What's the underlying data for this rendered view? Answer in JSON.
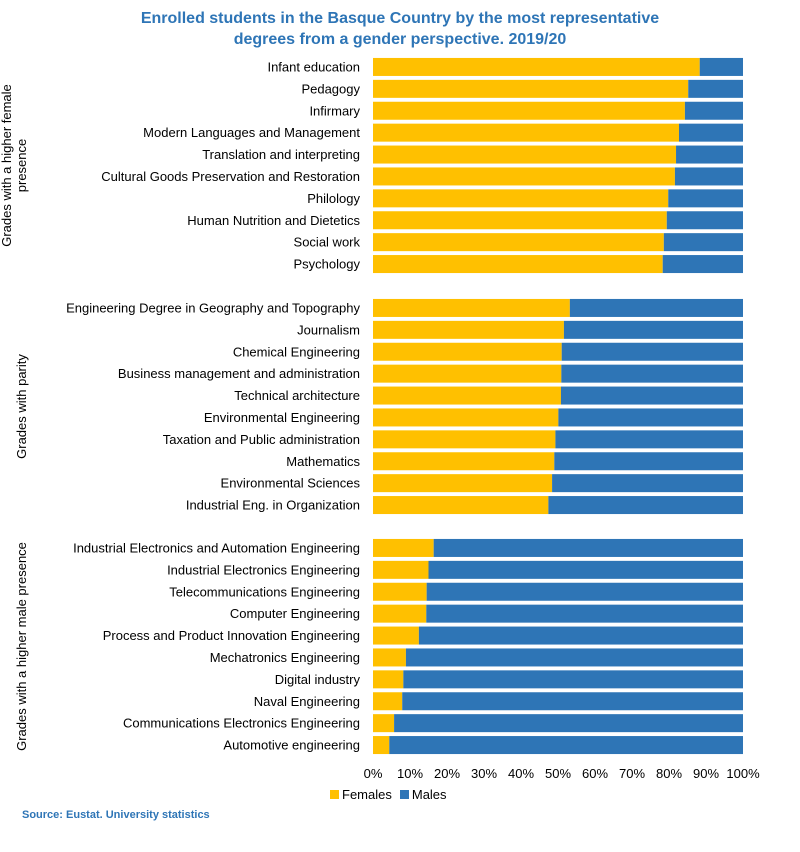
{
  "title_line1": "Enrolled students in the Basque Country by the most representative",
  "title_line2": "degrees from a gender perspective. 2019/20",
  "source": "Source: Eustat. University statistics",
  "colors": {
    "females": "#ffc000",
    "males": "#2e75b6",
    "title": "#2e75b6"
  },
  "legend": {
    "females": "Females",
    "males": "Males"
  },
  "chart_data": {
    "type": "bar",
    "orientation": "horizontal",
    "stacked": "100%",
    "title": "Enrolled students in the Basque Country by the most representative degrees from a gender perspective. 2019/20",
    "xlim": [
      0,
      100
    ],
    "x_ticks": [
      "0%",
      "10%",
      "20%",
      "30%",
      "40%",
      "50%",
      "60%",
      "70%",
      "80%",
      "90%",
      "100%"
    ],
    "grid": false,
    "legend_position": "bottom",
    "groups": [
      {
        "name": "Grades with a higher female presence",
        "categories": [
          "Infant education",
          "Pedagogy",
          "Infirmary",
          "Modern Languages and Management",
          "Translation and interpreting",
          "Cultural Goods Preservation and Restoration",
          "Philology",
          "Human Nutrition and Dietetics",
          "Social work",
          "Psychology"
        ],
        "females": [
          88.3,
          85.2,
          84.3,
          82.7,
          81.9,
          81.6,
          79.8,
          79.4,
          78.6,
          78.3
        ]
      },
      {
        "name": "Grades with parity",
        "categories": [
          "Engineering Degree in Geography and Topography",
          "Journalism",
          "Chemical Engineering",
          "Business management and administration",
          "Technical architecture",
          "Environmental Engineering",
          "Taxation and Public administration",
          "Mathematics",
          "Environmental Sciences",
          "Industrial Eng. in Organization"
        ],
        "females": [
          53.2,
          51.6,
          51.0,
          50.9,
          50.8,
          50.1,
          49.3,
          49.0,
          48.4,
          47.4
        ]
      },
      {
        "name": "Grades with a higher male presence",
        "categories": [
          "Industrial Electronics and Automation Engineering",
          "Industrial Electronics Engineering",
          "Telecommunications Engineering",
          "Computer Engineering",
          "Process and Product Innovation Engineering",
          "Mechatronics Engineering",
          "Digital industry",
          "Naval Engineering",
          "Communications Electronics Engineering",
          "Automotive engineering"
        ],
        "females": [
          16.4,
          15.0,
          14.5,
          14.4,
          12.4,
          8.9,
          8.2,
          7.9,
          5.7,
          4.4
        ]
      }
    ],
    "series": [
      {
        "name": "Females"
      },
      {
        "name": "Males"
      }
    ]
  }
}
